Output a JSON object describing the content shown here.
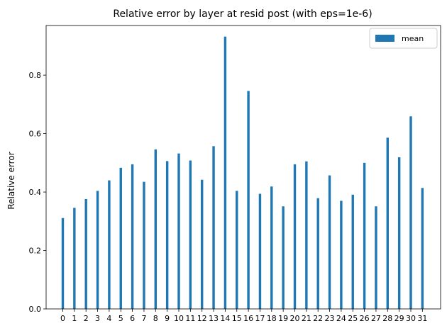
{
  "chart_data": {
    "type": "bar",
    "title": "Relative error by layer at resid post (with eps=1e-6)",
    "xlabel": "",
    "ylabel": "Relative error",
    "categories": [
      "0",
      "1",
      "2",
      "3",
      "4",
      "5",
      "6",
      "7",
      "8",
      "9",
      "10",
      "11",
      "12",
      "13",
      "14",
      "15",
      "16",
      "17",
      "18",
      "19",
      "20",
      "21",
      "22",
      "23",
      "24",
      "25",
      "26",
      "27",
      "28",
      "29",
      "30",
      "31"
    ],
    "series": [
      {
        "name": "mean",
        "color": "#1f77b4",
        "values": [
          0.311,
          0.346,
          0.376,
          0.404,
          0.44,
          0.483,
          0.495,
          0.435,
          0.546,
          0.506,
          0.532,
          0.508,
          0.442,
          0.557,
          0.932,
          0.404,
          0.746,
          0.394,
          0.419,
          0.351,
          0.495,
          0.505,
          0.379,
          0.457,
          0.37,
          0.391,
          0.5,
          0.351,
          0.586,
          0.519,
          0.659,
          0.414
        ]
      }
    ],
    "ylim": [
      0,
      0.97
    ],
    "yticks": [
      0.0,
      0.2,
      0.4,
      0.6,
      0.8
    ],
    "ytick_labels": [
      "0.0",
      "0.2",
      "0.4",
      "0.6",
      "0.8"
    ],
    "legend_position": "top-right",
    "grid": false
  }
}
